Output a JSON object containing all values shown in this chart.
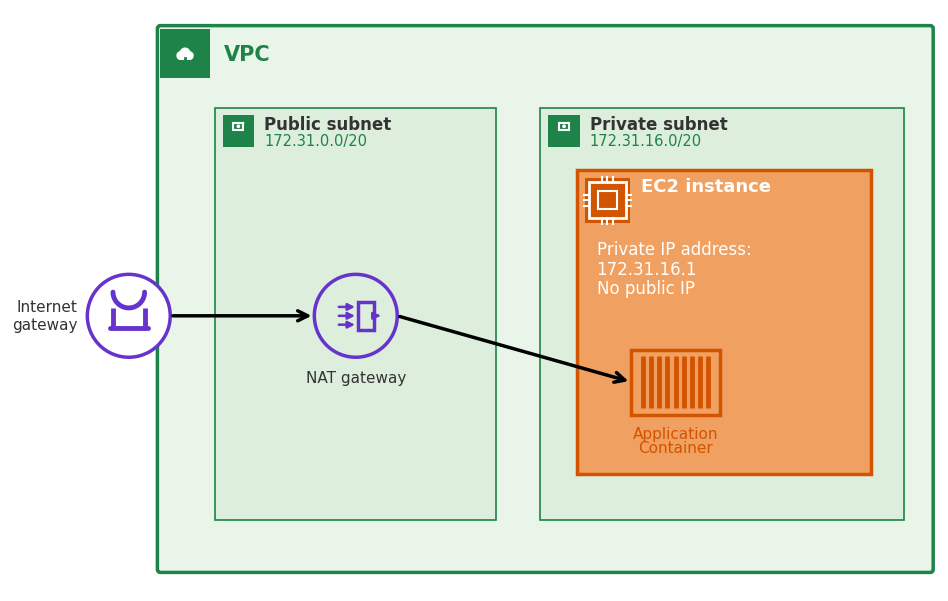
{
  "bg_color": "#ffffff",
  "vpc_border_color": "#1d8348",
  "vpc_bg_color": "#eaf5ea",
  "vpc_label": "VPC",
  "vpc_icon_bg": "#1d8348",
  "public_subnet_label": "Public subnet",
  "public_subnet_ip": "172.31.0.0/20",
  "public_subnet_bg": "#ddeedd",
  "public_subnet_border": "#1d8348",
  "private_subnet_label": "Private subnet",
  "private_subnet_ip": "172.31.16.0/20",
  "private_subnet_bg": "#ddeedd",
  "private_subnet_border": "#1d8348",
  "ec2_box_color": "#d35400",
  "ec2_box_bg": "#f0a060",
  "ec2_header_bg": "#d35400",
  "ec2_label": "EC2 instance",
  "ec2_ip_line1": "Private IP address:",
  "ec2_ip_line2": "172.31.16.1",
  "ec2_ip_line3": "No public IP",
  "app_container_label_line1": "Application",
  "app_container_label_line2": "Container",
  "app_container_color": "#d35400",
  "nat_label": "NAT gateway",
  "nat_circle_color": "#6633cc",
  "igw_label_line1": "Internet",
  "igw_label_line2": "gateway",
  "igw_circle_color": "#6633cc",
  "arrow_color": "#000000",
  "label_color_green": "#1d8348",
  "label_color_dark": "#333333",
  "label_color_orange": "#d35400"
}
